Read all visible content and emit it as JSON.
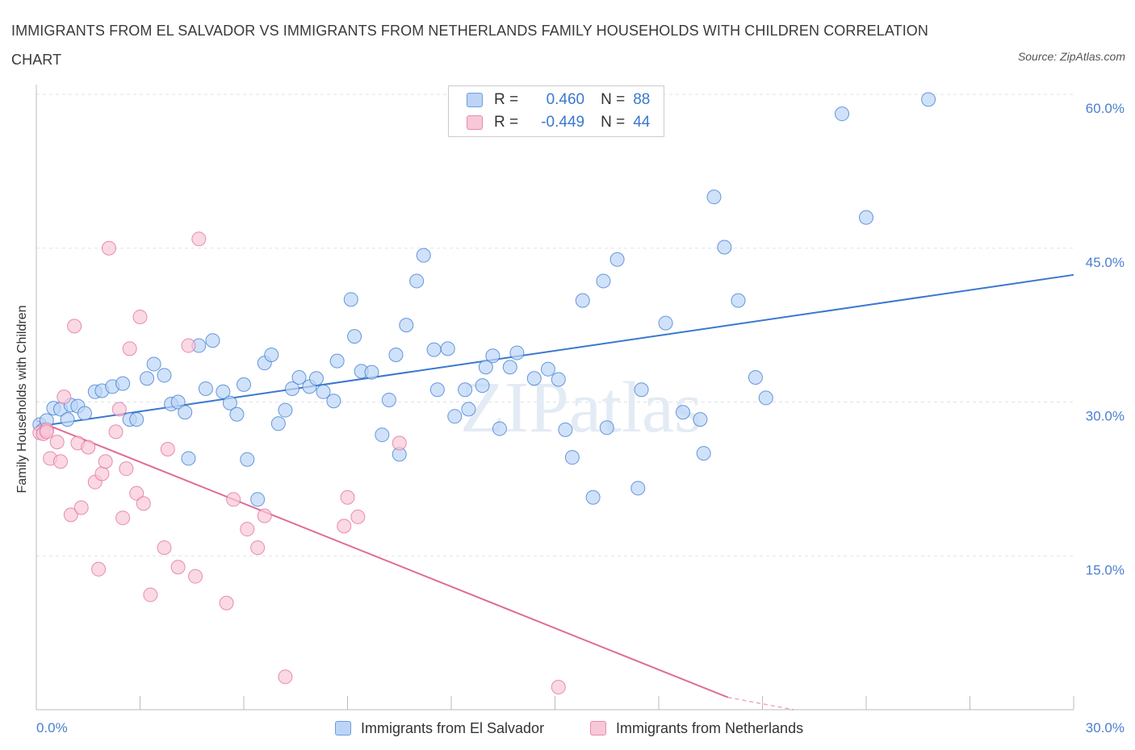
{
  "title": "IMMIGRANTS FROM EL SALVADOR VS IMMIGRANTS FROM NETHERLANDS FAMILY HOUSEHOLDS WITH CHILDREN CORRELATION CHART",
  "source": "Source: ZipAtlas.com",
  "watermark": "ZIPatlas",
  "legend": {
    "rows": [
      {
        "r_label": "R =",
        "r_value": "0.460",
        "n_label": "N =",
        "n_value": "88"
      },
      {
        "r_label": "R =",
        "r_value": "-0.449",
        "n_label": "N =",
        "n_value": "44"
      }
    ]
  },
  "chart_data": {
    "type": "scatter",
    "xlabel": "",
    "ylabel": "Family Households with Children",
    "xlim": [
      0,
      30
    ],
    "ylim": [
      0,
      60
    ],
    "x_tick_labels": [
      "0.0%",
      "30.0%"
    ],
    "y_ticks": [
      15,
      30,
      45,
      60
    ],
    "y_tick_labels": [
      "15.0%",
      "30.0%",
      "45.0%",
      "60.0%"
    ],
    "grid": true,
    "colors": {
      "blue": "#3a78cf",
      "pink": "#e06c98",
      "blue_fill": "#bcd5f7",
      "pink_fill": "#f8c8d8"
    },
    "series": [
      {
        "name": "Immigrants from El Salvador",
        "color": "#3a78cf",
        "trend": {
          "x": [
            0,
            30
          ],
          "y": [
            27.6,
            42.4
          ]
        },
        "points": [
          [
            0.1,
            27.8
          ],
          [
            0.2,
            27.3
          ],
          [
            0.3,
            28.2
          ],
          [
            0.5,
            29.4
          ],
          [
            0.7,
            29.3
          ],
          [
            0.9,
            28.3
          ],
          [
            1.0,
            29.7
          ],
          [
            1.2,
            29.6
          ],
          [
            1.4,
            28.9
          ],
          [
            1.7,
            31.0
          ],
          [
            1.9,
            31.1
          ],
          [
            2.2,
            31.5
          ],
          [
            2.5,
            31.8
          ],
          [
            2.7,
            28.3
          ],
          [
            2.9,
            28.3
          ],
          [
            3.2,
            32.3
          ],
          [
            3.4,
            33.7
          ],
          [
            3.7,
            32.6
          ],
          [
            3.9,
            29.8
          ],
          [
            4.1,
            30.0
          ],
          [
            4.3,
            29.0
          ],
          [
            4.4,
            24.5
          ],
          [
            4.7,
            35.5
          ],
          [
            4.9,
            31.3
          ],
          [
            5.1,
            36.0
          ],
          [
            5.4,
            31.0
          ],
          [
            5.6,
            29.9
          ],
          [
            5.8,
            28.8
          ],
          [
            6.0,
            31.7
          ],
          [
            6.1,
            24.4
          ],
          [
            6.4,
            20.5
          ],
          [
            6.6,
            33.8
          ],
          [
            6.8,
            34.6
          ],
          [
            7.0,
            27.9
          ],
          [
            7.2,
            29.2
          ],
          [
            7.4,
            31.3
          ],
          [
            7.6,
            32.4
          ],
          [
            7.9,
            31.5
          ],
          [
            8.1,
            32.3
          ],
          [
            8.3,
            31.0
          ],
          [
            8.6,
            30.1
          ],
          [
            8.7,
            34.0
          ],
          [
            9.1,
            40.0
          ],
          [
            9.2,
            36.4
          ],
          [
            9.4,
            33.0
          ],
          [
            9.7,
            32.9
          ],
          [
            10.0,
            26.8
          ],
          [
            10.2,
            30.2
          ],
          [
            10.4,
            34.6
          ],
          [
            10.5,
            24.9
          ],
          [
            10.7,
            37.5
          ],
          [
            11.0,
            41.8
          ],
          [
            11.2,
            44.3
          ],
          [
            11.5,
            35.1
          ],
          [
            11.6,
            31.2
          ],
          [
            11.9,
            35.2
          ],
          [
            12.1,
            28.6
          ],
          [
            12.4,
            31.2
          ],
          [
            12.5,
            29.3
          ],
          [
            12.9,
            31.6
          ],
          [
            13.0,
            33.4
          ],
          [
            13.2,
            34.5
          ],
          [
            13.4,
            27.4
          ],
          [
            13.7,
            33.4
          ],
          [
            13.9,
            34.8
          ],
          [
            14.4,
            32.3
          ],
          [
            14.8,
            33.2
          ],
          [
            15.1,
            32.2
          ],
          [
            15.3,
            27.3
          ],
          [
            15.5,
            24.6
          ],
          [
            15.8,
            39.9
          ],
          [
            16.1,
            20.7
          ],
          [
            16.4,
            41.8
          ],
          [
            16.5,
            27.5
          ],
          [
            16.8,
            43.9
          ],
          [
            17.4,
            21.6
          ],
          [
            17.5,
            31.2
          ],
          [
            18.2,
            37.7
          ],
          [
            18.7,
            29.0
          ],
          [
            19.2,
            28.3
          ],
          [
            19.3,
            25.0
          ],
          [
            19.6,
            50.0
          ],
          [
            19.9,
            45.1
          ],
          [
            20.3,
            39.9
          ],
          [
            20.8,
            32.4
          ],
          [
            21.1,
            30.4
          ],
          [
            23.3,
            58.1
          ],
          [
            24.0,
            48.0
          ],
          [
            25.8,
            59.5
          ]
        ]
      },
      {
        "name": "Immigrants from Netherlands",
        "color": "#e06c98",
        "trend": {
          "x": [
            0,
            20.0
          ],
          "y": [
            28.2,
            1.2
          ]
        },
        "trend_dashed": {
          "x": [
            20.0,
            21.9
          ],
          "y": [
            1.2,
            -1.3
          ]
        },
        "points": [
          [
            0.1,
            27.0
          ],
          [
            0.2,
            26.9
          ],
          [
            0.3,
            27.3
          ],
          [
            0.3,
            27.1
          ],
          [
            0.4,
            24.5
          ],
          [
            0.6,
            26.1
          ],
          [
            0.7,
            24.2
          ],
          [
            0.8,
            30.5
          ],
          [
            1.0,
            19.0
          ],
          [
            1.1,
            37.4
          ],
          [
            1.2,
            26.0
          ],
          [
            1.3,
            19.7
          ],
          [
            1.5,
            25.6
          ],
          [
            1.7,
            22.2
          ],
          [
            1.8,
            13.7
          ],
          [
            1.9,
            23.0
          ],
          [
            2.0,
            24.2
          ],
          [
            2.1,
            45.0
          ],
          [
            2.3,
            27.1
          ],
          [
            2.4,
            29.3
          ],
          [
            2.5,
            18.7
          ],
          [
            2.6,
            23.5
          ],
          [
            2.7,
            35.2
          ],
          [
            2.9,
            21.1
          ],
          [
            3.0,
            38.3
          ],
          [
            3.1,
            20.1
          ],
          [
            3.3,
            11.2
          ],
          [
            3.7,
            15.8
          ],
          [
            3.8,
            25.4
          ],
          [
            4.1,
            13.9
          ],
          [
            4.4,
            35.5
          ],
          [
            4.6,
            13.0
          ],
          [
            4.7,
            45.9
          ],
          [
            5.5,
            10.4
          ],
          [
            5.7,
            20.5
          ],
          [
            6.1,
            17.6
          ],
          [
            6.4,
            15.8
          ],
          [
            6.6,
            18.9
          ],
          [
            7.2,
            3.2
          ],
          [
            8.9,
            17.9
          ],
          [
            9.0,
            20.7
          ],
          [
            9.3,
            18.8
          ],
          [
            10.5,
            26.0
          ],
          [
            15.1,
            2.2
          ]
        ]
      }
    ]
  },
  "bottom_legend": [
    "Immigrants from El Salvador",
    "Immigrants from Netherlands"
  ]
}
